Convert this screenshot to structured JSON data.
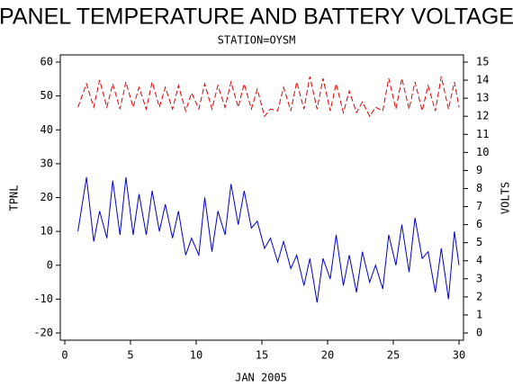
{
  "chart_data": {
    "type": "line",
    "title": "PANEL TEMPERATURE AND BATTERY VOLTAGE",
    "subtitle": "STATION=OYSM",
    "x_label": "JAN 2005",
    "y_label": "TPNL",
    "y2_label": "VOLTS",
    "xlim": [
      0,
      30
    ],
    "xticks": [
      0,
      5,
      10,
      15,
      20,
      25,
      30
    ],
    "ylim": [
      -20,
      60
    ],
    "yticks": [
      -20,
      -10,
      0,
      10,
      20,
      30,
      40,
      50,
      60
    ],
    "y2lim": [
      0,
      15
    ],
    "y2ticks": [
      0,
      1,
      2,
      3,
      4,
      5,
      6,
      7,
      8,
      9,
      10,
      11,
      12,
      13,
      14,
      15
    ],
    "x": [
      1.0,
      1.65,
      2.2,
      2.65,
      3.2,
      3.65,
      4.2,
      4.65,
      5.2,
      5.65,
      6.2,
      6.65,
      7.2,
      7.65,
      8.2,
      8.65,
      9.2,
      9.65,
      10.2,
      10.65,
      11.2,
      11.65,
      12.2,
      12.65,
      13.2,
      13.65,
      14.2,
      14.65,
      15.2,
      15.65,
      16.2,
      16.65,
      17.2,
      17.65,
      18.2,
      18.65,
      19.2,
      19.65,
      20.2,
      20.65,
      21.2,
      21.65,
      22.2,
      22.65,
      23.2,
      23.65,
      24.2,
      24.65,
      25.2,
      25.65,
      26.2,
      26.65,
      27.2,
      27.65,
      28.2,
      28.65,
      29.2,
      29.65,
      30.0
    ],
    "series": [
      {
        "name": "TPNL",
        "color": "#0000cc",
        "dashed": false,
        "values": [
          10,
          26,
          7,
          16,
          8,
          25,
          9,
          26,
          9,
          21,
          9,
          22,
          10,
          18,
          8,
          16,
          3,
          8,
          3,
          20,
          4,
          16,
          9,
          24,
          12,
          22,
          11,
          13,
          5,
          8,
          1,
          7,
          -1,
          3,
          -6,
          2,
          -11,
          2,
          -4,
          9,
          -6,
          3,
          -8,
          4,
          -5,
          0,
          -7,
          9,
          0,
          12,
          -2,
          14,
          2,
          4,
          -8,
          5,
          -10,
          10,
          0
        ]
      },
      {
        "name": "VOLTS",
        "color": "#dd0000",
        "dashed": true,
        "axis": "y2",
        "values": [
          12.5,
          13.8,
          12.5,
          14.0,
          12.5,
          13.8,
          12.4,
          13.9,
          12.5,
          13.6,
          12.4,
          13.9,
          12.5,
          13.6,
          12.4,
          13.7,
          12.3,
          13.3,
          12.4,
          13.8,
          12.4,
          13.7,
          12.5,
          13.9,
          12.5,
          13.8,
          12.4,
          13.5,
          12.0,
          12.4,
          12.3,
          13.6,
          12.3,
          13.9,
          12.4,
          14.2,
          12.4,
          14.1,
          12.3,
          13.8,
          12.2,
          13.4,
          12.2,
          12.8,
          12.0,
          12.5,
          12.3,
          14.1,
          12.4,
          14.1,
          12.4,
          13.9,
          12.3,
          13.7,
          12.3,
          14.2,
          12.4,
          13.9,
          12.5
        ]
      }
    ]
  }
}
